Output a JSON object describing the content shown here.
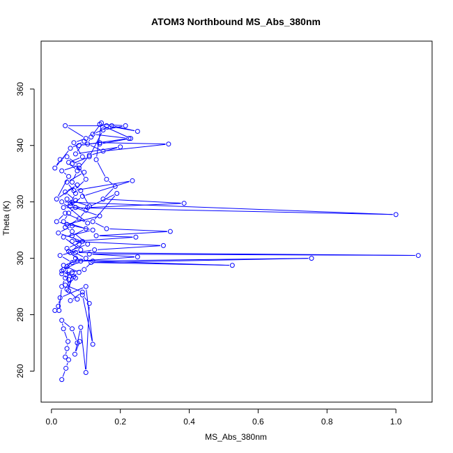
{
  "chart_data": {
    "type": "line",
    "title": "ATOM3 Northbound MS_Abs_380nm",
    "xlabel": "MS_Abs_380nm",
    "ylabel": "Theta (K)",
    "xlim": [
      -0.03,
      1.105
    ],
    "ylim": [
      249,
      377
    ],
    "x_ticks": [
      "0.0",
      "0.2",
      "0.4",
      "0.6",
      "0.8",
      "1.0"
    ],
    "x_tick_values": [
      0.0,
      0.2,
      0.4,
      0.6,
      0.8,
      1.0
    ],
    "y_ticks": [
      "260",
      "280",
      "300",
      "320",
      "340",
      "360"
    ],
    "y_tick_values": [
      260,
      280,
      300,
      320,
      340,
      360
    ],
    "grid": false,
    "legend": "none",
    "colors": {
      "series": "#0000ff",
      "axis": "#000000",
      "background": "#ffffff"
    },
    "series": [
      {
        "points": [
          [
            0.03,
            257.0
          ],
          [
            0.042,
            261.0
          ],
          [
            0.05,
            264.0
          ],
          [
            0.04,
            265.0
          ],
          [
            0.045,
            268.0
          ],
          [
            0.048,
            270.5
          ],
          [
            0.035,
            275.0
          ],
          [
            0.03,
            278.0
          ],
          [
            0.06,
            275.0
          ],
          [
            0.075,
            270.0
          ],
          [
            0.082,
            270.5
          ],
          [
            0.068,
            266.0
          ],
          [
            0.085,
            275.5
          ],
          [
            0.1,
            259.5
          ],
          [
            0.11,
            284.0
          ],
          [
            0.09,
            287.0
          ],
          [
            0.12,
            269.5
          ],
          [
            0.1,
            290.0
          ],
          [
            0.025,
            286.0
          ],
          [
            0.02,
            283.0
          ],
          [
            0.01,
            281.5
          ],
          [
            0.022,
            281.5
          ],
          [
            0.03,
            290.0
          ],
          [
            0.04,
            293.0
          ],
          [
            0.06,
            295.0
          ],
          [
            0.05,
            288.5
          ],
          [
            0.045,
            297.0
          ],
          [
            0.07,
            300.0
          ],
          [
            0.055,
            302.0
          ],
          [
            0.08,
            305.0
          ],
          [
            0.06,
            308.0
          ],
          [
            0.1,
            310.5
          ],
          [
            0.035,
            313.0
          ],
          [
            0.05,
            316.0
          ],
          [
            0.07,
            318.0
          ],
          [
            0.045,
            321.0
          ],
          [
            0.11,
            318.5
          ],
          [
            0.085,
            324.0
          ],
          [
            0.06,
            327.0
          ],
          [
            0.075,
            331.0
          ],
          [
            0.05,
            334.0
          ],
          [
            0.09,
            336.0
          ],
          [
            0.065,
            341.0
          ],
          [
            0.1,
            342.5
          ],
          [
            0.04,
            347.0
          ],
          [
            0.16,
            347.0
          ],
          [
            0.25,
            345.0
          ],
          [
            0.175,
            347.0
          ],
          [
            0.12,
            344.0
          ],
          [
            0.225,
            342.5
          ],
          [
            0.08,
            340.0
          ],
          [
            0.14,
            341.0
          ],
          [
            0.34,
            340.5
          ],
          [
            0.15,
            338.0
          ],
          [
            0.105,
            340.5
          ],
          [
            0.115,
            343.0
          ],
          [
            0.145,
            348.0
          ],
          [
            0.13,
            335.0
          ],
          [
            0.16,
            328.0
          ],
          [
            0.185,
            325.5
          ],
          [
            0.15,
            321.0
          ],
          [
            0.385,
            319.5
          ],
          [
            0.105,
            318.0
          ],
          [
            0.19,
            323.0
          ],
          [
            0.12,
            313.0
          ],
          [
            0.16,
            310.5
          ],
          [
            0.345,
            309.5
          ],
          [
            0.13,
            308.0
          ],
          [
            0.245,
            307.5
          ],
          [
            0.06,
            306.0
          ],
          [
            0.325,
            304.5
          ],
          [
            0.125,
            303.0
          ],
          [
            0.07,
            302.0
          ],
          [
            1.065,
            301.0
          ],
          [
            0.11,
            301.5
          ],
          [
            0.25,
            300.5
          ],
          [
            0.075,
            299.0
          ],
          [
            0.755,
            300.0
          ],
          [
            0.115,
            298.5
          ],
          [
            0.525,
            297.5
          ],
          [
            0.12,
            299.0
          ],
          [
            0.095,
            296.0
          ],
          [
            0.03,
            294.5
          ],
          [
            0.05,
            292.5
          ],
          [
            0.08,
            295.0
          ],
          [
            0.035,
            297.5
          ],
          [
            0.1,
            300.0
          ],
          [
            0.045,
            303.5
          ],
          [
            0.09,
            306.0
          ],
          [
            0.02,
            309.0
          ],
          [
            0.06,
            311.5
          ],
          [
            0.015,
            313.0
          ],
          [
            0.04,
            316.0
          ],
          [
            0.105,
            312.5
          ],
          [
            0.03,
            320.0
          ],
          [
            1.0,
            315.5
          ],
          [
            0.035,
            318.0
          ],
          [
            0.07,
            320.5
          ],
          [
            0.04,
            323.5
          ],
          [
            0.075,
            326.0
          ],
          [
            0.015,
            321.0
          ],
          [
            0.05,
            329.0
          ],
          [
            0.03,
            331.0
          ],
          [
            0.08,
            333.0
          ],
          [
            0.045,
            336.0
          ],
          [
            0.025,
            335.0
          ],
          [
            0.01,
            332.0
          ],
          [
            0.055,
            339.0
          ],
          [
            0.095,
            341.5
          ],
          [
            0.07,
            337.0
          ],
          [
            0.2,
            339.5
          ],
          [
            0.11,
            336.5
          ],
          [
            0.08,
            332.0
          ],
          [
            0.1,
            328.0
          ],
          [
            0.065,
            324.0
          ],
          [
            0.235,
            327.5
          ],
          [
            0.09,
            322.0
          ],
          [
            0.055,
            318.5
          ],
          [
            0.14,
            315.0
          ],
          [
            0.045,
            312.0
          ],
          [
            0.12,
            310.0
          ],
          [
            0.035,
            307.5
          ],
          [
            0.085,
            303.0
          ],
          [
            0.025,
            301.0
          ],
          [
            0.06,
            298.5
          ],
          [
            0.03,
            295.5
          ],
          [
            0.07,
            293.0
          ],
          [
            0.04,
            290.5
          ],
          [
            0.09,
            288.0
          ],
          [
            0.055,
            285.0
          ],
          [
            0.075,
            285.5
          ],
          [
            0.045,
            289.0
          ],
          [
            0.065,
            293.5
          ],
          [
            0.035,
            296.0
          ],
          [
            0.085,
            299.0
          ],
          [
            0.05,
            302.5
          ],
          [
            0.105,
            305.0
          ],
          [
            0.06,
            309.5
          ],
          [
            0.04,
            311.0
          ],
          [
            0.08,
            314.0
          ],
          [
            0.1,
            317.0
          ],
          [
            0.055,
            319.5
          ],
          [
            0.07,
            323.0
          ],
          [
            0.045,
            327.0
          ],
          [
            0.095,
            330.5
          ],
          [
            0.06,
            333.5
          ],
          [
            0.11,
            336.0
          ],
          [
            0.15,
            345.5
          ],
          [
            0.215,
            347.0
          ],
          [
            0.14,
            347.5
          ],
          [
            0.23,
            342.5
          ],
          [
            0.14,
            340.5
          ]
        ]
      }
    ]
  }
}
